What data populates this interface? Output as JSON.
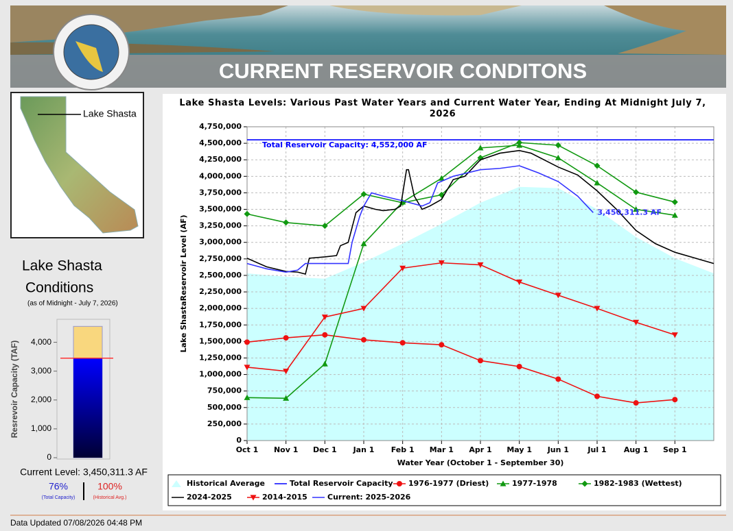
{
  "header": {
    "title": "CURRENT RESERVOIR CONDITONS"
  },
  "map": {
    "label": "Lake Shasta"
  },
  "conditions": {
    "title_line1": "Lake Shasta",
    "title_line2": "Conditions",
    "as_of": "(as of Midnight - July 7, 2026)",
    "current_level": "Current Level: 3,450,311.3 AF",
    "percent_capacity": "76%",
    "percent_capacity_note": "(Total Capacity)",
    "percent_average": "100%",
    "percent_average_note": "(Historical Avg.)"
  },
  "chart_data": [
    {
      "type": "bar",
      "y_label": "Resrevoir Capacity (TAF)",
      "ylim": [
        0,
        4750
      ],
      "yticks": [
        0,
        {
          "value": 1000,
          "label": "1,000"
        },
        {
          "value": 2000,
          "label": "2,000"
        },
        {
          "value": 3000,
          "label": "3,000"
        },
        {
          "value": 4000,
          "label": "4,000"
        }
      ],
      "capacity": 4552,
      "capacity_color": "#f9d77e",
      "current": 3450.3113,
      "current_color": "#0000cc",
      "historical_average": 3450,
      "historical_color": "#ff3333"
    },
    {
      "type": "line",
      "title": "Lake Shasta Levels: Various Past Water Years and Current Water Year, Ending At Midnight July 7, 2026",
      "x_label": "Water Year (October 1 - September 30)",
      "y_label": "Lake ShastaReservoir Level (AF)",
      "xlim": [
        0,
        12
      ],
      "ylim": [
        0,
        4750000
      ],
      "grid": true,
      "xticks": [
        {
          "value": 0,
          "label": "Oct 1"
        },
        {
          "value": 1,
          "label": "Nov 1"
        },
        {
          "value": 2,
          "label": "Dec 1"
        },
        {
          "value": 3,
          "label": "Jan 1"
        },
        {
          "value": 4,
          "label": "Feb 1"
        },
        {
          "value": 5,
          "label": "Mar 1"
        },
        {
          "value": 6,
          "label": "Apr 1"
        },
        {
          "value": 7,
          "label": "May 1"
        },
        {
          "value": 8,
          "label": "Jun 1"
        },
        {
          "value": 9,
          "label": "Jul 1"
        },
        {
          "value": 10,
          "label": "Aug 1"
        },
        {
          "value": 11,
          "label": "Sep 1"
        }
      ],
      "yticks": [
        0,
        {
          "value": 250000,
          "label": "250,000"
        },
        {
          "value": 500000,
          "label": "500,000"
        },
        {
          "value": 750000,
          "label": "750,000"
        },
        {
          "value": 1000000,
          "label": "1,000,000"
        },
        {
          "value": 1250000,
          "label": "1,250,000"
        },
        {
          "value": 1500000,
          "label": "1,500,000"
        },
        {
          "value": 1750000,
          "label": "1,750,000"
        },
        {
          "value": 2000000,
          "label": "2,000,000"
        },
        {
          "value": 2250000,
          "label": "2,250,000"
        },
        {
          "value": 2500000,
          "label": "2,500,000"
        },
        {
          "value": 2750000,
          "label": "2,750,000"
        },
        {
          "value": 3000000,
          "label": "3,000,000"
        },
        {
          "value": 3250000,
          "label": "3,250,000"
        },
        {
          "value": 3500000,
          "label": "3,500,000"
        },
        {
          "value": 3750000,
          "label": "3,750,000"
        },
        {
          "value": 4000000,
          "label": "4,000,000"
        },
        {
          "value": 4250000,
          "label": "4,250,000"
        },
        {
          "value": 4500000,
          "label": "4,500,000"
        },
        {
          "value": 4750000,
          "label": "4,750,000"
        }
      ],
      "capacity_label": "Total Reservoir Capacity: 4,552,000 AF",
      "current_label": "3,450,311.3 AF",
      "series": [
        {
          "name": "Historical Average",
          "color": "#ccffff",
          "area": true,
          "x": [
            0,
            1,
            2,
            3,
            4,
            5,
            6,
            7,
            8,
            9,
            10,
            11,
            12
          ],
          "values": [
            2530000,
            2480000,
            2450000,
            2700000,
            2980000,
            3280000,
            3600000,
            3840000,
            3820000,
            3500000,
            3080000,
            2760000,
            2530000
          ]
        },
        {
          "name": "Total Reservoir Capacity",
          "color": "#0000ff",
          "x": [
            0,
            12
          ],
          "values": [
            4552000,
            4552000
          ]
        },
        {
          "name": "1976-1977 (Driest)",
          "color": "#ee1111",
          "marker": "circle",
          "x": [
            0,
            1,
            2,
            3,
            4,
            5,
            6,
            7,
            8,
            9,
            10,
            11
          ],
          "values": [
            1490000,
            1555000,
            1600000,
            1525000,
            1480000,
            1450000,
            1210000,
            1120000,
            930000,
            670000,
            570000,
            620000
          ]
        },
        {
          "name": "1977-1978",
          "color": "#119911",
          "marker": "triangle-up",
          "x": [
            0,
            1,
            2,
            3,
            4,
            5,
            6,
            7,
            8,
            9,
            10,
            11
          ],
          "values": [
            650000,
            640000,
            1160000,
            2980000,
            3610000,
            3970000,
            4430000,
            4470000,
            4280000,
            3900000,
            3500000,
            3410000
          ]
        },
        {
          "name": "1982-1983 (Wettest)",
          "color": "#119911",
          "marker": "diamond",
          "x": [
            0,
            1,
            2,
            3,
            4,
            5,
            6,
            7,
            8,
            9,
            10,
            11
          ],
          "values": [
            3430000,
            3300000,
            3250000,
            3730000,
            3600000,
            3720000,
            4280000,
            4510000,
            4470000,
            4160000,
            3760000,
            3610000
          ]
        },
        {
          "name": "2024-2025",
          "color": "#000000",
          "x": [
            0,
            0.5,
            1,
            1.3,
            1.5,
            1.6,
            2,
            2.3,
            2.4,
            2.6,
            2.8,
            3,
            3.3,
            3.5,
            3.8,
            3.95,
            4.1,
            4.15,
            4.3,
            4.5,
            4.7,
            5,
            5.3,
            5.6,
            6,
            6.5,
            7,
            7.3,
            8,
            8.5,
            9,
            9.5,
            10,
            10.5,
            11,
            12
          ],
          "values": [
            2760000,
            2630000,
            2560000,
            2550000,
            2520000,
            2760000,
            2780000,
            2800000,
            2950000,
            3000000,
            3450000,
            3550000,
            3500000,
            3480000,
            3500000,
            3550000,
            4100000,
            4100000,
            3700000,
            3500000,
            3550000,
            3650000,
            3950000,
            4000000,
            4250000,
            4350000,
            4390000,
            4350000,
            4140000,
            4020000,
            3780000,
            3500000,
            3180000,
            2980000,
            2850000,
            2680000
          ]
        },
        {
          "name": "2014-2015",
          "color": "#ee1111",
          "marker": "triangle-down",
          "x": [
            0,
            1,
            2,
            3,
            4,
            5,
            6,
            7,
            8,
            9,
            10,
            11
          ],
          "values": [
            1110000,
            1050000,
            1870000,
            2000000,
            2610000,
            2690000,
            2660000,
            2400000,
            2200000,
            2000000,
            1790000,
            1600000
          ]
        },
        {
          "name": "Current: 2025-2026",
          "color": "#3333ff",
          "x": [
            0,
            0.5,
            1,
            1.3,
            1.5,
            2,
            2.6,
            2.7,
            2.9,
            3,
            3.2,
            3.5,
            4,
            4.5,
            4.7,
            4.9,
            5.3,
            6,
            6.5,
            7,
            7.5,
            8,
            8.5,
            8.9
          ],
          "values": [
            2680000,
            2600000,
            2550000,
            2580000,
            2680000,
            2680000,
            2680000,
            3000000,
            3400000,
            3550000,
            3750000,
            3700000,
            3630000,
            3550000,
            3600000,
            3900000,
            4000000,
            4100000,
            4120000,
            4160000,
            4050000,
            3920000,
            3700000,
            3450311.3
          ]
        }
      ]
    }
  ],
  "footer": {
    "updated": "Data Updated 07/08/2026 04:48 PM"
  }
}
